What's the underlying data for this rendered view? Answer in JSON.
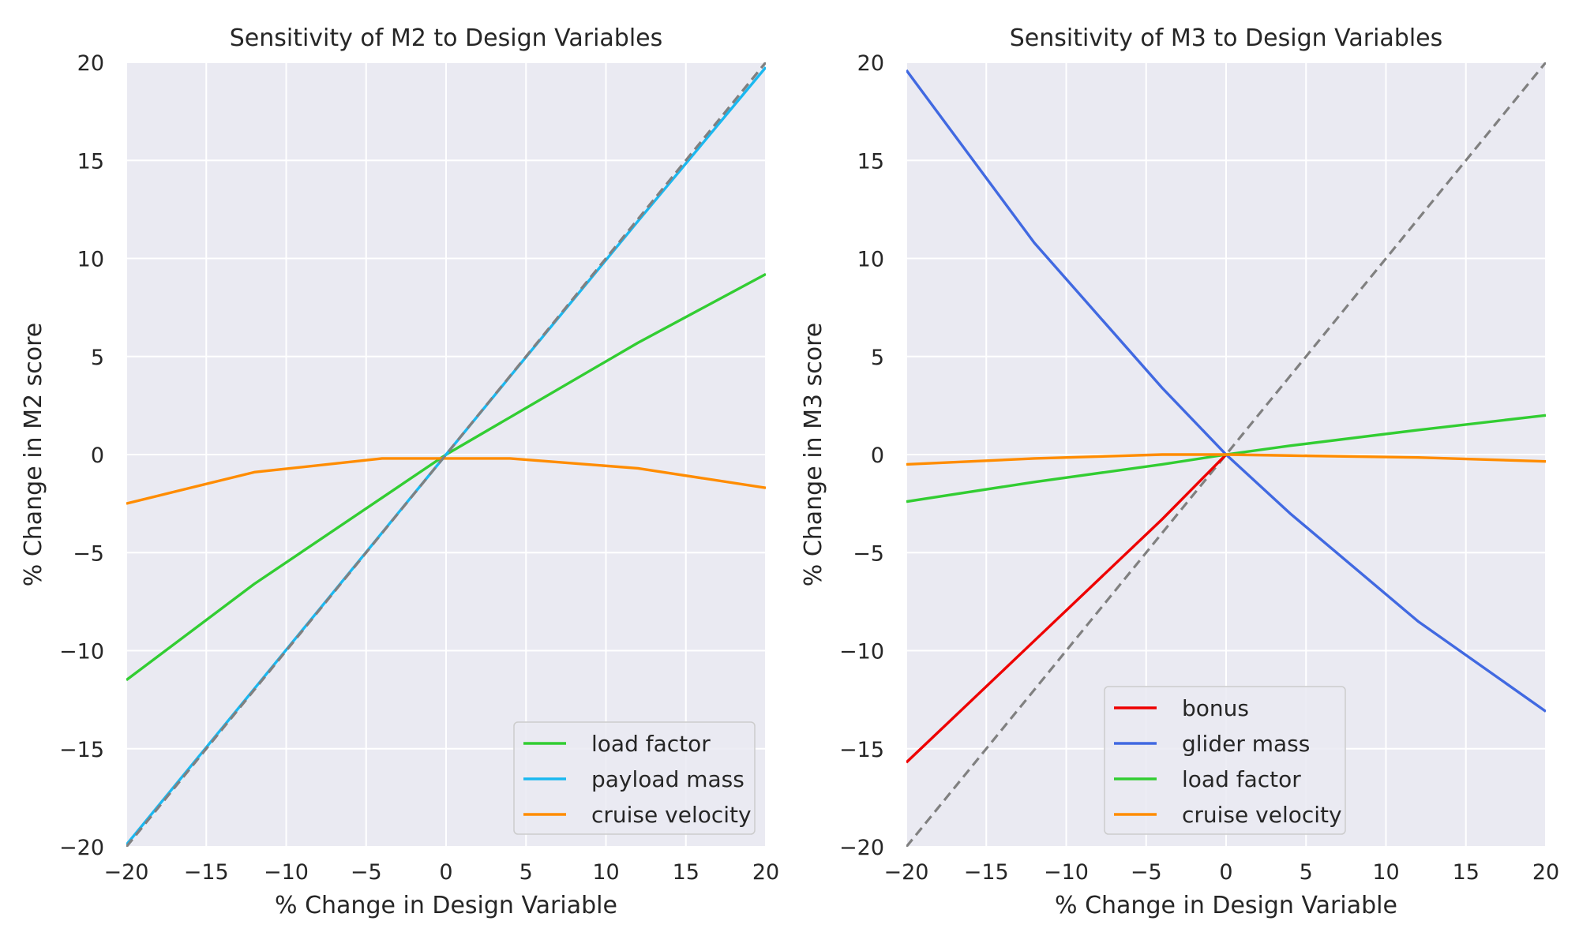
{
  "chart_data": [
    {
      "type": "line",
      "title": "Sensitivity of M2 to Design Variables",
      "xlabel": "% Change in Design Variable",
      "ylabel": "% Change in M2 score",
      "xlim": [
        -20,
        20
      ],
      "ylim": [
        -20,
        20
      ],
      "xticks": [
        "−20",
        "−15",
        "−10",
        "−5",
        "0",
        "5",
        "10",
        "15",
        "20"
      ],
      "yticks": [
        "−20",
        "−15",
        "−10",
        "−5",
        "0",
        "5",
        "10",
        "15",
        "20"
      ],
      "grid": true,
      "legend_position": "lower-right",
      "reference_line": {
        "style": "dashed",
        "color": "#808080",
        "x": [
          -20,
          20
        ],
        "y": [
          -20,
          20
        ]
      },
      "series": [
        {
          "name": "load factor",
          "color": "#32cd32",
          "x": [
            -20,
            -12,
            -4,
            0,
            4,
            12,
            20
          ],
          "y": [
            -11.5,
            -6.6,
            -2.2,
            0,
            1.9,
            5.7,
            9.2
          ]
        },
        {
          "name": "payload mass",
          "color": "#1ab8f0",
          "x": [
            -20,
            -12,
            -4,
            0,
            4,
            12,
            20
          ],
          "y": [
            -19.9,
            -11.95,
            -3.98,
            0,
            3.98,
            11.9,
            19.75
          ]
        },
        {
          "name": "cruise velocity",
          "color": "#ff8c00",
          "x": [
            -20,
            -12,
            -4,
            0,
            4,
            12,
            20
          ],
          "y": [
            -2.5,
            -0.9,
            -0.2,
            -0.2,
            -0.2,
            -0.7,
            -1.7
          ]
        }
      ]
    },
    {
      "type": "line",
      "title": "Sensitivity of M3 to Design Variables",
      "xlabel": "% Change in Design Variable",
      "ylabel": "% Change in M3 score",
      "xlim": [
        -20,
        20
      ],
      "ylim": [
        -20,
        20
      ],
      "xticks": [
        "−20",
        "−15",
        "−10",
        "−5",
        "0",
        "5",
        "10",
        "15",
        "20"
      ],
      "yticks": [
        "−20",
        "−15",
        "−10",
        "−5",
        "0",
        "5",
        "10",
        "15",
        "20"
      ],
      "grid": true,
      "legend_position": "lower-center",
      "reference_line": {
        "style": "dashed",
        "color": "#808080",
        "x": [
          -20,
          20
        ],
        "y": [
          -20,
          20
        ]
      },
      "series": [
        {
          "name": "bonus",
          "color": "#ee0000",
          "x": [
            -20,
            -12,
            -4,
            0
          ],
          "y": [
            -15.7,
            -9.5,
            -3.3,
            0
          ]
        },
        {
          "name": "glider mass",
          "color": "#4169e1",
          "x": [
            -20,
            -12,
            -4,
            0,
            4,
            12,
            20
          ],
          "y": [
            19.6,
            10.8,
            3.4,
            0,
            -3.0,
            -8.5,
            -13.1
          ]
        },
        {
          "name": "load factor",
          "color": "#32cd32",
          "x": [
            -20,
            -12,
            -4,
            0,
            4,
            12,
            20
          ],
          "y": [
            -2.4,
            -1.4,
            -0.5,
            0,
            0.45,
            1.25,
            2.0
          ]
        },
        {
          "name": "cruise velocity",
          "color": "#ff8c00",
          "x": [
            -20,
            -12,
            -4,
            0,
            4,
            12,
            20
          ],
          "y": [
            -0.5,
            -0.2,
            0.0,
            0.0,
            -0.05,
            -0.15,
            -0.35
          ]
        }
      ]
    }
  ]
}
